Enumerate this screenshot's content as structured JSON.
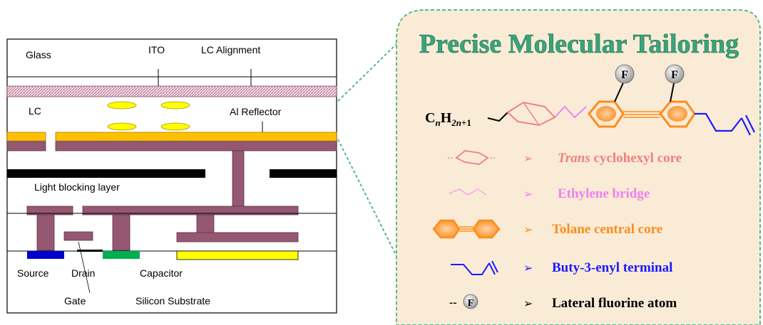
{
  "device": {
    "labels": {
      "glass": "Glass",
      "ito": "ITO",
      "lc_alignment": "LC Alignment",
      "lc": "LC",
      "al_reflector": "Al Reflector",
      "light_blocking": "Light blocking layer",
      "source": "Source",
      "drain": "Drain",
      "capacitor": "Capacitor",
      "gate": "Gate",
      "substrate": "Silicon Substrate"
    }
  },
  "molecule": {
    "title": "Precise Molecular Tailoring",
    "formula_c": "C",
    "formula_n": "n",
    "formula_h": "H",
    "formula_sub": "2n+1",
    "fluoro_label": "F"
  },
  "legend": [
    {
      "prefix": "",
      "main": "Trans",
      "rest": " cyclohexyl core",
      "color": "#f08080",
      "italic_main": true
    },
    {
      "prefix": "",
      "main": "Ethylene bridge",
      "rest": "",
      "color": "#ee82ee",
      "italic_main": false
    },
    {
      "prefix": "",
      "main": "Tolane  central core",
      "rest": "",
      "color": "#ff8c1a",
      "italic_main": false
    },
    {
      "prefix": "",
      "main": "Buty-3-enyl terminal",
      "rest": "",
      "color": "#1a1aff",
      "italic_main": false
    },
    {
      "prefix": "--F",
      "main": "Lateral fluorine atom",
      "rest": "",
      "color": "#000000",
      "italic_main": false
    }
  ],
  "colors": {
    "panel_bg": "#faebd7",
    "panel_border": "#5ab887",
    "title": "#3aa47a",
    "metal": "#955873",
    "gold": "#ffc000",
    "black_layer": "#000000",
    "source": "#0000cc",
    "capacitor": "#00b050",
    "yellow": "#ffff00",
    "lc_ellipse": "#ffff00",
    "benzene": "#ff8c1a",
    "cyclohexyl": "#f08080",
    "ethylene": "#ee82ee",
    "butenyl": "#1a1aff"
  }
}
